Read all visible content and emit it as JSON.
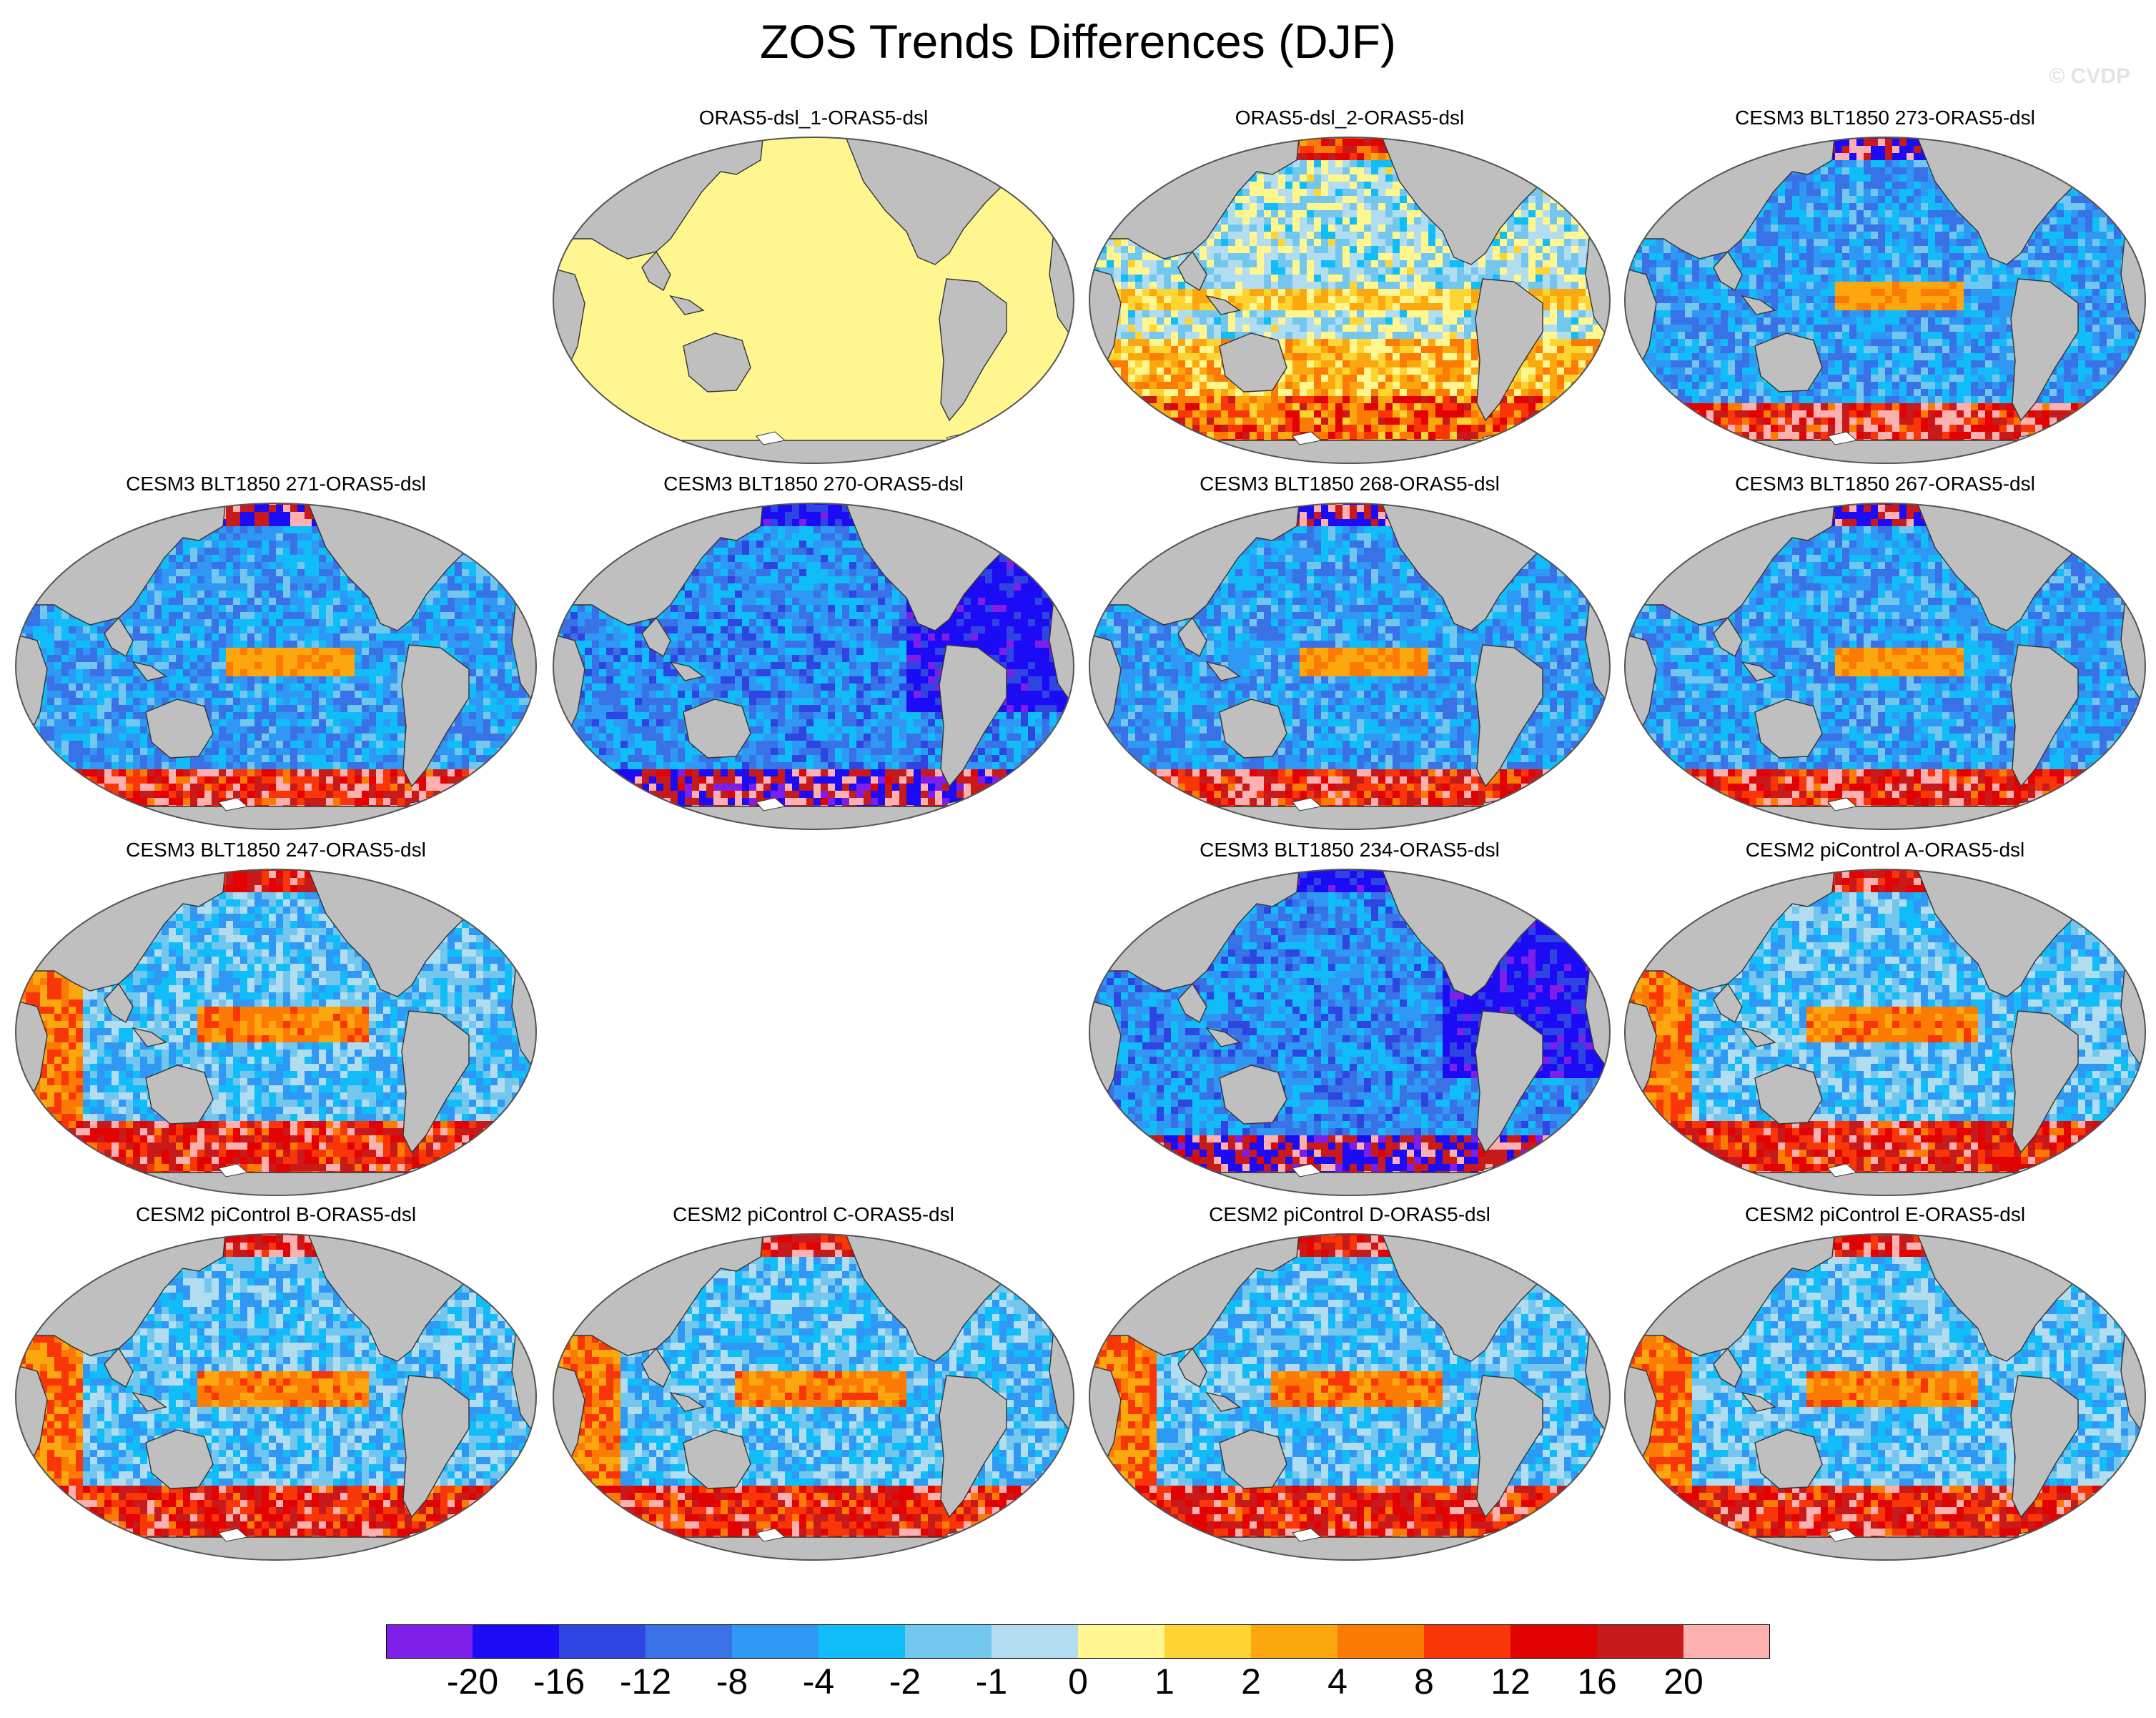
{
  "title": "ZOS Trends Differences (DJF)",
  "watermark": "© CVDP",
  "land_color": "#bfbfbf",
  "panels": [
    {
      "row": 0,
      "col": 1,
      "title": "ORAS5-dsl_1-ORAS5-dsl",
      "pattern": "uniform-zero"
    },
    {
      "row": 0,
      "col": 2,
      "title": "ORAS5-dsl_2-ORAS5-dsl",
      "pattern": "mixed-warm-south"
    },
    {
      "row": 0,
      "col": 3,
      "title": "CESM3 BLT1850 273-ORAS5-dsl",
      "pattern": "cool-with-warm-edges"
    },
    {
      "row": 1,
      "col": 0,
      "title": "CESM3 BLT1850 271-ORAS5-dsl",
      "pattern": "cool-with-warm-edges"
    },
    {
      "row": 1,
      "col": 1,
      "title": "CESM3 BLT1850 270-ORAS5-dsl",
      "pattern": "strong-cool-atlantic"
    },
    {
      "row": 1,
      "col": 2,
      "title": "CESM3 BLT1850 268-ORAS5-dsl",
      "pattern": "cool-with-warm-edges"
    },
    {
      "row": 1,
      "col": 3,
      "title": "CESM3 BLT1850 267-ORAS5-dsl",
      "pattern": "cool-with-warm-edges"
    },
    {
      "row": 2,
      "col": 0,
      "title": "CESM3 BLT1850 247-ORAS5-dsl",
      "pattern": "warm-pacific-bands"
    },
    {
      "row": 2,
      "col": 2,
      "title": "CESM3 BLT1850 234-ORAS5-dsl",
      "pattern": "strong-cool-atlantic"
    },
    {
      "row": 2,
      "col": 3,
      "title": "CESM2 piControl A-ORAS5-dsl",
      "pattern": "warm-pacific-bands"
    },
    {
      "row": 3,
      "col": 0,
      "title": "CESM2 piControl B-ORAS5-dsl",
      "pattern": "warm-pacific-bands"
    },
    {
      "row": 3,
      "col": 1,
      "title": "CESM2 piControl C-ORAS5-dsl",
      "pattern": "warm-pacific-bands"
    },
    {
      "row": 3,
      "col": 2,
      "title": "CESM2 piControl D-ORAS5-dsl",
      "pattern": "warm-pacific-bands"
    },
    {
      "row": 3,
      "col": 3,
      "title": "CESM2 piControl E-ORAS5-dsl",
      "pattern": "warm-pacific-bands"
    }
  ],
  "colorbar": {
    "colors": [
      "#7d1fe8",
      "#1b0cf5",
      "#2f45e2",
      "#3872e6",
      "#2e98f4",
      "#11bdf8",
      "#73c7ee",
      "#b2ddf0",
      "#fff690",
      "#fdd431",
      "#fca70e",
      "#fb7b05",
      "#f93608",
      "#e30202",
      "#c81a1a",
      "#fcb0b0"
    ],
    "tick_labels": [
      "-20",
      "-16",
      "-12",
      "-8",
      "-4",
      "-2",
      "-1",
      "0",
      "1",
      "2",
      "4",
      "8",
      "12",
      "16",
      "20"
    ]
  }
}
